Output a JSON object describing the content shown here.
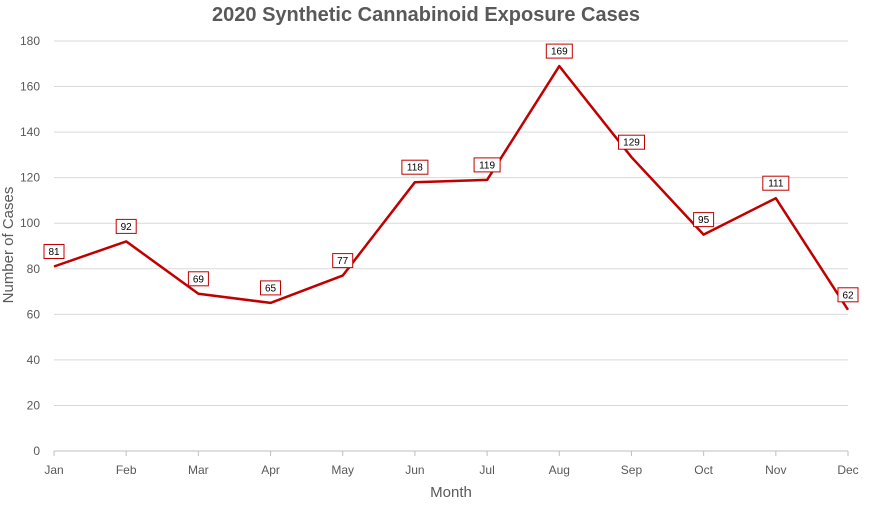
{
  "chart_data": {
    "type": "line",
    "title": "2020 Synthetic Cannabinoid Exposure Cases",
    "xlabel": "Month",
    "ylabel": "Number of Cases",
    "categories": [
      "Jan",
      "Feb",
      "Mar",
      "Apr",
      "May",
      "Jun",
      "Jul",
      "Aug",
      "Sep",
      "Oct",
      "Nov",
      "Dec"
    ],
    "series": [
      {
        "values": [
          81,
          92,
          69,
          65,
          77,
          118,
          119,
          169,
          129,
          95,
          111,
          62
        ],
        "color": "#c00000"
      }
    ],
    "ylim": [
      0,
      180
    ],
    "yticks": [
      0,
      20,
      40,
      60,
      80,
      100,
      120,
      140,
      160,
      180
    ],
    "grid": true,
    "data_labels": true,
    "legend": "none"
  }
}
